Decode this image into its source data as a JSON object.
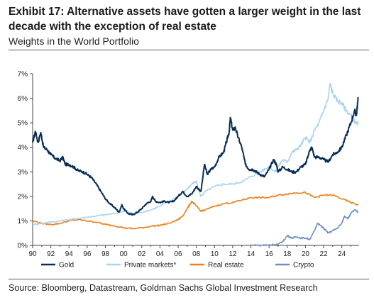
{
  "header": {
    "title": "Exhibit 17: Alternative assets have gotten a larger weight in the last decade with the exception of real estate",
    "subtitle": "Weights in the World Portfolio"
  },
  "footer": {
    "source": "Source: Bloomberg, Datastream, Goldman Sachs Global Investment Research"
  },
  "chart_data": {
    "type": "line",
    "title": "Exhibit 17: Alternative assets have gotten a larger weight in the last decade with the exception of real estate",
    "subtitle": "Weights in the World Portfolio",
    "xlabel": "",
    "ylabel": "",
    "xlim": [
      1990,
      2025.9
    ],
    "ylim": [
      0,
      7
    ],
    "x_ticks": [
      1990,
      1992,
      1994,
      1996,
      1998,
      2000,
      2002,
      2004,
      2006,
      2008,
      2010,
      2012,
      2014,
      2016,
      2018,
      2020,
      2022,
      2024
    ],
    "x_tick_labels": [
      "90",
      "92",
      "94",
      "96",
      "98",
      "00",
      "02",
      "04",
      "06",
      "08",
      "10",
      "12",
      "14",
      "16",
      "18",
      "20",
      "22",
      "24"
    ],
    "y_ticks": [
      0,
      1,
      2,
      3,
      4,
      5,
      6,
      7
    ],
    "y_tick_labels": [
      "0%",
      "1%",
      "2%",
      "3%",
      "4%",
      "5%",
      "6%",
      "7%"
    ],
    "grid": false,
    "legend_position": "bottom",
    "series": [
      {
        "name": "Gold",
        "color": "#0b2d55",
        "points": [
          [
            1990.0,
            4.2
          ],
          [
            1990.3,
            4.65
          ],
          [
            1990.6,
            4.2
          ],
          [
            1990.9,
            4.6
          ],
          [
            1991.2,
            4.0
          ],
          [
            1991.6,
            3.9
          ],
          [
            1992.0,
            3.7
          ],
          [
            1992.5,
            3.55
          ],
          [
            1993.0,
            3.45
          ],
          [
            1993.3,
            3.6
          ],
          [
            1993.6,
            3.3
          ],
          [
            1994.0,
            3.3
          ],
          [
            1994.5,
            3.2
          ],
          [
            1995.0,
            3.05
          ],
          [
            1995.5,
            3.0
          ],
          [
            1996.0,
            2.9
          ],
          [
            1996.5,
            2.75
          ],
          [
            1997.0,
            2.5
          ],
          [
            1997.5,
            2.2
          ],
          [
            1998.0,
            1.9
          ],
          [
            1998.5,
            1.7
          ],
          [
            1999.0,
            1.55
          ],
          [
            1999.5,
            1.35
          ],
          [
            1999.8,
            1.65
          ],
          [
            2000.0,
            1.5
          ],
          [
            2000.5,
            1.3
          ],
          [
            2001.0,
            1.25
          ],
          [
            2001.5,
            1.35
          ],
          [
            2002.0,
            1.5
          ],
          [
            2002.5,
            1.7
          ],
          [
            2003.0,
            1.8
          ],
          [
            2003.2,
            2.0
          ],
          [
            2003.5,
            1.8
          ],
          [
            2004.0,
            1.75
          ],
          [
            2004.5,
            1.8
          ],
          [
            2005.0,
            1.75
          ],
          [
            2005.5,
            1.8
          ],
          [
            2006.0,
            2.0
          ],
          [
            2006.5,
            2.2
          ],
          [
            2007.0,
            2.0
          ],
          [
            2007.5,
            2.1
          ],
          [
            2008.0,
            2.4
          ],
          [
            2008.5,
            2.2
          ],
          [
            2008.9,
            3.3
          ],
          [
            2009.2,
            2.9
          ],
          [
            2009.6,
            3.1
          ],
          [
            2010.0,
            3.2
          ],
          [
            2010.5,
            3.6
          ],
          [
            2011.0,
            3.8
          ],
          [
            2011.3,
            4.2
          ],
          [
            2011.6,
            4.6
          ],
          [
            2011.75,
            5.2
          ],
          [
            2012.0,
            4.7
          ],
          [
            2012.3,
            4.8
          ],
          [
            2012.6,
            4.4
          ],
          [
            2013.0,
            4.0
          ],
          [
            2013.4,
            3.3
          ],
          [
            2013.8,
            3.1
          ],
          [
            2014.2,
            3.1
          ],
          [
            2014.6,
            3.0
          ],
          [
            2015.0,
            2.9
          ],
          [
            2015.5,
            2.8
          ],
          [
            2016.0,
            3.1
          ],
          [
            2016.5,
            3.5
          ],
          [
            2016.8,
            3.3
          ],
          [
            2017.0,
            3.0
          ],
          [
            2017.5,
            3.2
          ],
          [
            2018.0,
            3.1
          ],
          [
            2018.5,
            3.0
          ],
          [
            2019.0,
            3.0
          ],
          [
            2019.5,
            3.2
          ],
          [
            2020.0,
            3.3
          ],
          [
            2020.5,
            3.9
          ],
          [
            2020.7,
            4.0
          ],
          [
            2021.0,
            3.6
          ],
          [
            2021.5,
            3.6
          ],
          [
            2022.0,
            3.5
          ],
          [
            2022.5,
            3.4
          ],
          [
            2023.0,
            3.7
          ],
          [
            2023.5,
            3.8
          ],
          [
            2024.0,
            4.0
          ],
          [
            2024.5,
            4.5
          ],
          [
            2025.0,
            5.0
          ],
          [
            2025.4,
            5.5
          ],
          [
            2025.6,
            5.3
          ],
          [
            2025.8,
            6.0
          ]
        ]
      },
      {
        "name": "Private markets*",
        "color": "#a9d4f0",
        "points": [
          [
            1990.0,
            0.85
          ],
          [
            1991.0,
            0.9
          ],
          [
            1992.0,
            0.95
          ],
          [
            1993.0,
            1.0
          ],
          [
            1994.0,
            1.05
          ],
          [
            1995.0,
            1.1
          ],
          [
            1996.0,
            1.15
          ],
          [
            1997.0,
            1.2
          ],
          [
            1998.0,
            1.25
          ],
          [
            1999.0,
            1.3
          ],
          [
            2000.0,
            1.4
          ],
          [
            2000.5,
            1.35
          ],
          [
            2001.0,
            1.3
          ],
          [
            2002.0,
            1.35
          ],
          [
            2003.0,
            1.45
          ],
          [
            2004.0,
            1.6
          ],
          [
            2005.0,
            1.8
          ],
          [
            2006.0,
            2.0
          ],
          [
            2007.0,
            2.3
          ],
          [
            2007.5,
            2.5
          ],
          [
            2008.0,
            2.6
          ],
          [
            2008.5,
            2.0
          ],
          [
            2009.0,
            2.2
          ],
          [
            2010.0,
            2.4
          ],
          [
            2011.0,
            2.5
          ],
          [
            2012.0,
            2.5
          ],
          [
            2013.0,
            2.6
          ],
          [
            2014.0,
            2.8
          ],
          [
            2015.0,
            3.0
          ],
          [
            2016.0,
            3.2
          ],
          [
            2016.7,
            3.0
          ],
          [
            2017.0,
            3.2
          ],
          [
            2017.5,
            3.5
          ],
          [
            2018.0,
            3.4
          ],
          [
            2018.5,
            3.8
          ],
          [
            2019.0,
            3.9
          ],
          [
            2019.5,
            4.1
          ],
          [
            2020.0,
            4.4
          ],
          [
            2020.5,
            4.2
          ],
          [
            2021.0,
            4.7
          ],
          [
            2021.5,
            5.0
          ],
          [
            2022.0,
            5.5
          ],
          [
            2022.5,
            6.0
          ],
          [
            2022.7,
            6.6
          ],
          [
            2023.0,
            6.2
          ],
          [
            2023.5,
            5.9
          ],
          [
            2024.0,
            5.8
          ],
          [
            2024.5,
            5.5
          ],
          [
            2025.0,
            5.3
          ],
          [
            2025.5,
            5.0
          ],
          [
            2025.8,
            4.95
          ]
        ]
      },
      {
        "name": "Real estate",
        "color": "#f07f1a",
        "points": [
          [
            1990.0,
            1.0
          ],
          [
            1991.0,
            0.9
          ],
          [
            1992.0,
            0.85
          ],
          [
            1993.0,
            0.9
          ],
          [
            1994.0,
            1.0
          ],
          [
            1995.0,
            1.05
          ],
          [
            1996.0,
            1.0
          ],
          [
            1997.0,
            0.95
          ],
          [
            1998.0,
            0.85
          ],
          [
            1999.0,
            0.8
          ],
          [
            2000.0,
            0.72
          ],
          [
            2001.0,
            0.68
          ],
          [
            2002.0,
            0.72
          ],
          [
            2003.0,
            0.78
          ],
          [
            2004.0,
            0.82
          ],
          [
            2005.0,
            0.9
          ],
          [
            2006.0,
            1.05
          ],
          [
            2006.5,
            1.2
          ],
          [
            2007.0,
            1.5
          ],
          [
            2007.5,
            1.8
          ],
          [
            2008.0,
            1.6
          ],
          [
            2008.5,
            1.4
          ],
          [
            2009.0,
            1.45
          ],
          [
            2010.0,
            1.6
          ],
          [
            2011.0,
            1.7
          ],
          [
            2012.0,
            1.75
          ],
          [
            2013.0,
            1.85
          ],
          [
            2014.0,
            1.95
          ],
          [
            2015.0,
            1.95
          ],
          [
            2016.0,
            1.95
          ],
          [
            2017.0,
            2.05
          ],
          [
            2018.0,
            2.1
          ],
          [
            2019.0,
            2.15
          ],
          [
            2020.0,
            2.15
          ],
          [
            2021.0,
            1.95
          ],
          [
            2022.0,
            2.05
          ],
          [
            2023.0,
            2.05
          ],
          [
            2024.0,
            1.9
          ],
          [
            2025.0,
            1.75
          ],
          [
            2025.8,
            1.65
          ]
        ]
      },
      {
        "name": "Crypto",
        "color": "#6e8fc6",
        "points": [
          [
            2014.0,
            0.01
          ],
          [
            2015.0,
            0.01
          ],
          [
            2016.0,
            0.02
          ],
          [
            2017.0,
            0.05
          ],
          [
            2017.5,
            0.15
          ],
          [
            2018.0,
            0.4
          ],
          [
            2018.5,
            0.3
          ],
          [
            2019.0,
            0.35
          ],
          [
            2019.5,
            0.3
          ],
          [
            2020.0,
            0.3
          ],
          [
            2020.5,
            0.25
          ],
          [
            2021.0,
            0.6
          ],
          [
            2021.3,
            0.9
          ],
          [
            2021.7,
            0.8
          ],
          [
            2022.0,
            0.7
          ],
          [
            2022.5,
            0.5
          ],
          [
            2023.0,
            0.6
          ],
          [
            2023.5,
            0.7
          ],
          [
            2024.0,
            0.9
          ],
          [
            2024.3,
            1.2
          ],
          [
            2024.7,
            1.1
          ],
          [
            2025.0,
            1.3
          ],
          [
            2025.4,
            1.45
          ],
          [
            2025.8,
            1.35
          ]
        ]
      }
    ]
  }
}
